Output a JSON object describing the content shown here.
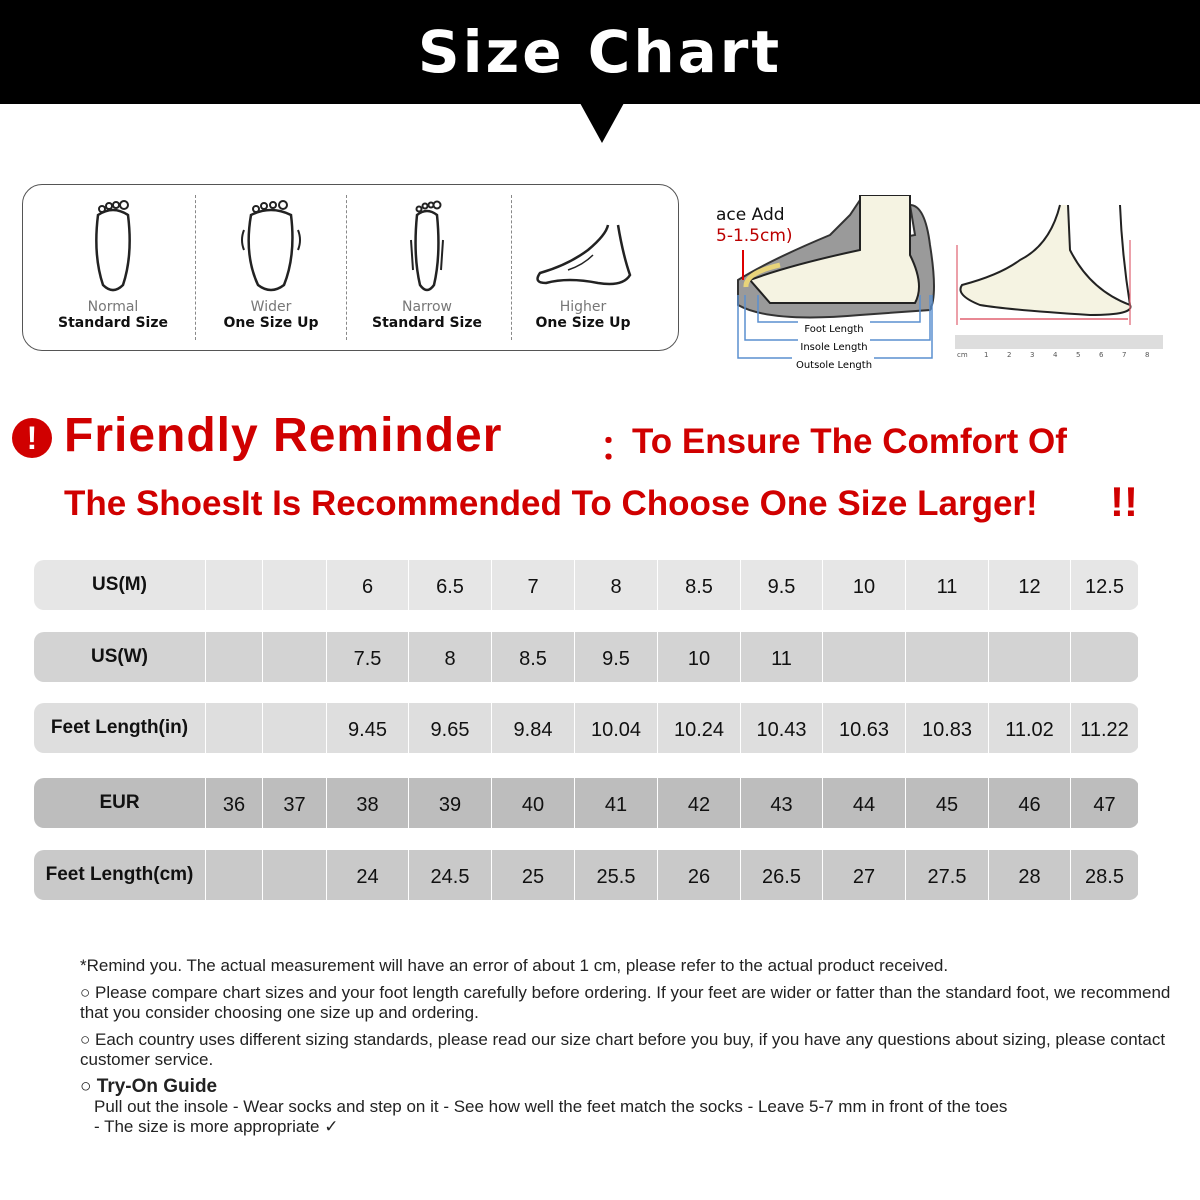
{
  "title": "Size Chart",
  "foot_types": [
    {
      "label": "Normal",
      "size": "Standard Size"
    },
    {
      "label": "Wider",
      "size": "One Size Up"
    },
    {
      "label": "Narrow",
      "size": "Standard Size"
    },
    {
      "label": "Higher",
      "size": "One Size Up"
    }
  ],
  "diagram": {
    "space_add": "ace Add",
    "space_value": "5-1.5cm)",
    "foot_length": "Foot Length",
    "insole_length": "Insole Length",
    "outsole_length": "Outsole Length",
    "ruler_unit": "cm",
    "ruler_ticks": [
      "1",
      "2",
      "3",
      "4",
      "5",
      "6",
      "7",
      "8"
    ]
  },
  "reminder": {
    "title": "Friendly Reminder",
    "colon": "：",
    "line1": "To Ensure The Comfort Of",
    "line2": "The ShoesIt Is Recommended To Choose One Size Larger!",
    "exclaim": "!!"
  },
  "table": {
    "rows": [
      {
        "header": "US(M)",
        "cells": [
          "",
          "",
          "6",
          "6.5",
          "7",
          "8",
          "8.5",
          "9.5",
          "10",
          "11",
          "12",
          "12.5"
        ],
        "color": "#e6e6e6"
      },
      {
        "header": "US(W)",
        "cells": [
          "",
          "",
          "7.5",
          "8",
          "8.5",
          "9.5",
          "10",
          "11",
          "",
          "",
          "",
          ""
        ],
        "color": "#d3d3d3"
      },
      {
        "header": "Feet Length(in)",
        "cells": [
          "",
          "",
          "9.45",
          "9.65",
          "9.84",
          "10.04",
          "10.24",
          "10.43",
          "10.63",
          "10.83",
          "11.02",
          "11.22"
        ],
        "color": "#dedede"
      },
      {
        "header": "EUR",
        "cells": [
          "36",
          "37",
          "38",
          "39",
          "40",
          "41",
          "42",
          "43",
          "44",
          "45",
          "46",
          "47"
        ],
        "color": "#bdbdbd"
      },
      {
        "header": "Feet Length(cm)",
        "cells": [
          "",
          "",
          "24",
          "24.5",
          "25",
          "25.5",
          "26",
          "26.5",
          "27",
          "27.5",
          "28",
          "28.5"
        ],
        "color": "#c9c9c9"
      }
    ]
  },
  "notes": {
    "n0": "*Remind you. The actual measurement will have an error of about 1 cm, please refer to the actual product received.",
    "n1": "Please compare chart sizes and your foot length carefully before ordering. If your feet are wider or fatter than the standard foot, we recommend that you consider choosing one size up and ordering.",
    "n2": "Each country uses different sizing standards, please read our size chart before you buy, if you have any questions about sizing, please contact customer service.",
    "guide_title": "Try-On Guide",
    "guide_text": "Pull out the insole - Wear socks and step on it - See how well the feet match the socks - Leave 5-7 mm in front of the toes",
    "guide_end": "- The size is more appropriate ✓"
  }
}
